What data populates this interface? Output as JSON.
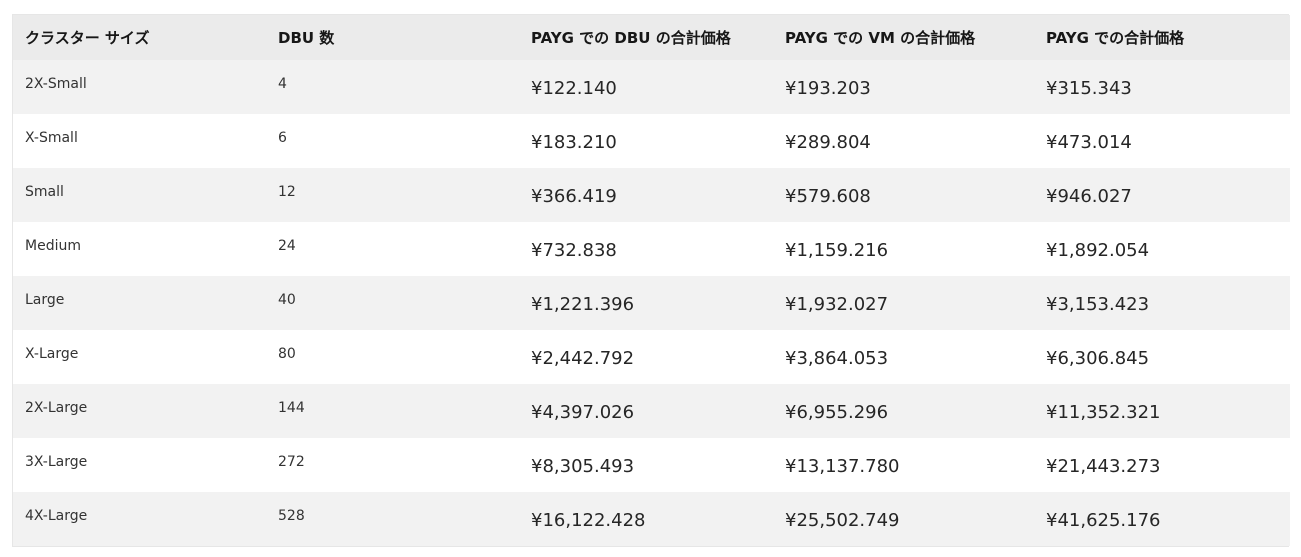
{
  "table": {
    "headers": [
      "クラスター サイズ",
      "DBU 数",
      "PAYG での DBU の合計価格",
      "PAYG での VM の合計価格",
      "PAYG での合計価格"
    ],
    "rows": [
      {
        "size": "2X-Small",
        "dbu": "4",
        "dbu_price": "¥122.140",
        "vm_price": "¥193.203",
        "total_price": "¥315.343"
      },
      {
        "size": "X-Small",
        "dbu": "6",
        "dbu_price": "¥183.210",
        "vm_price": "¥289.804",
        "total_price": "¥473.014"
      },
      {
        "size": "Small",
        "dbu": "12",
        "dbu_price": "¥366.419",
        "vm_price": "¥579.608",
        "total_price": "¥946.027"
      },
      {
        "size": "Medium",
        "dbu": "24",
        "dbu_price": "¥732.838",
        "vm_price": "¥1,159.216",
        "total_price": "¥1,892.054"
      },
      {
        "size": "Large",
        "dbu": "40",
        "dbu_price": "¥1,221.396",
        "vm_price": "¥1,932.027",
        "total_price": "¥3,153.423"
      },
      {
        "size": "X-Large",
        "dbu": "80",
        "dbu_price": "¥2,442.792",
        "vm_price": "¥3,864.053",
        "total_price": "¥6,306.845"
      },
      {
        "size": "2X-Large",
        "dbu": "144",
        "dbu_price": "¥4,397.026",
        "vm_price": "¥6,955.296",
        "total_price": "¥11,352.321"
      },
      {
        "size": "3X-Large",
        "dbu": "272",
        "dbu_price": "¥8,305.493",
        "vm_price": "¥13,137.780",
        "total_price": "¥21,443.273"
      },
      {
        "size": "4X-Large",
        "dbu": "528",
        "dbu_price": "¥16,122.428",
        "vm_price": "¥25,502.749",
        "total_price": "¥41,625.176"
      }
    ]
  }
}
